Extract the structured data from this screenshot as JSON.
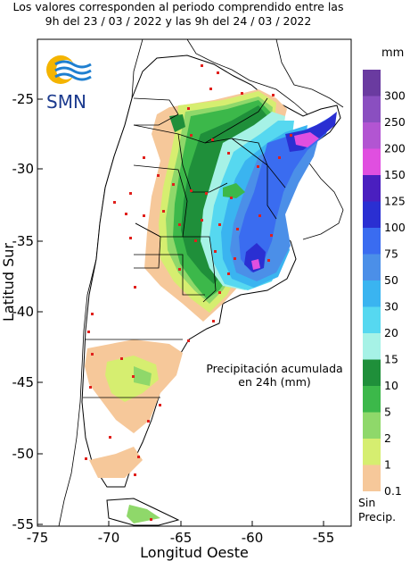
{
  "header": {
    "line1": "Los valores corresponden al periodo comprendido entre las",
    "line2": "9h del 23 / 03 / 2022  y las 9h del 24 / 03 / 2022"
  },
  "logo": {
    "text": "SMN",
    "icon": "smn-sun-wave-logo"
  },
  "axes": {
    "y_title": "Latitud Sur",
    "x_title": "Longitud Oeste",
    "y_ticks": [
      "-25",
      "-30",
      "-35",
      "-40",
      "-45",
      "-50",
      "-55"
    ],
    "x_ticks": [
      "-75",
      "-70",
      "-65",
      "-60",
      "-55"
    ],
    "lon_range": [
      -75,
      -52
    ],
    "lat_range": [
      -55,
      -21
    ]
  },
  "note": {
    "line1": "Precipitación acumulada",
    "line2": "en 24h (mm)"
  },
  "legend": {
    "unit": "mm",
    "entries": [
      {
        "label": "300",
        "color": "#6a3ba0"
      },
      {
        "label": "250",
        "color": "#8a4fc0"
      },
      {
        "label": "200",
        "color": "#b255d2"
      },
      {
        "label": "150",
        "color": "#e04fe0"
      },
      {
        "label": "125",
        "color": "#4a1fbf"
      },
      {
        "label": "100",
        "color": "#2a2fd2"
      },
      {
        "label": "75",
        "color": "#3a6cf0"
      },
      {
        "label": "50",
        "color": "#4b8fe8"
      },
      {
        "label": "30",
        "color": "#3ab4f0"
      },
      {
        "label": "20",
        "color": "#56d8f0"
      },
      {
        "label": "15",
        "color": "#a6f2e6"
      },
      {
        "label": "10",
        "color": "#1f8f3a"
      },
      {
        "label": "5",
        "color": "#3cb84a"
      },
      {
        "label": "2",
        "color": "#8fd86a"
      },
      {
        "label": "1",
        "color": "#d6ee70"
      },
      {
        "label": "0.1",
        "color": "#f6c89a"
      }
    ],
    "no_data_line1": "Sin",
    "no_data_line2": "Precip."
  },
  "colors": {
    "land": "#ffffff",
    "border": "#000000",
    "station": "#e0201c"
  }
}
